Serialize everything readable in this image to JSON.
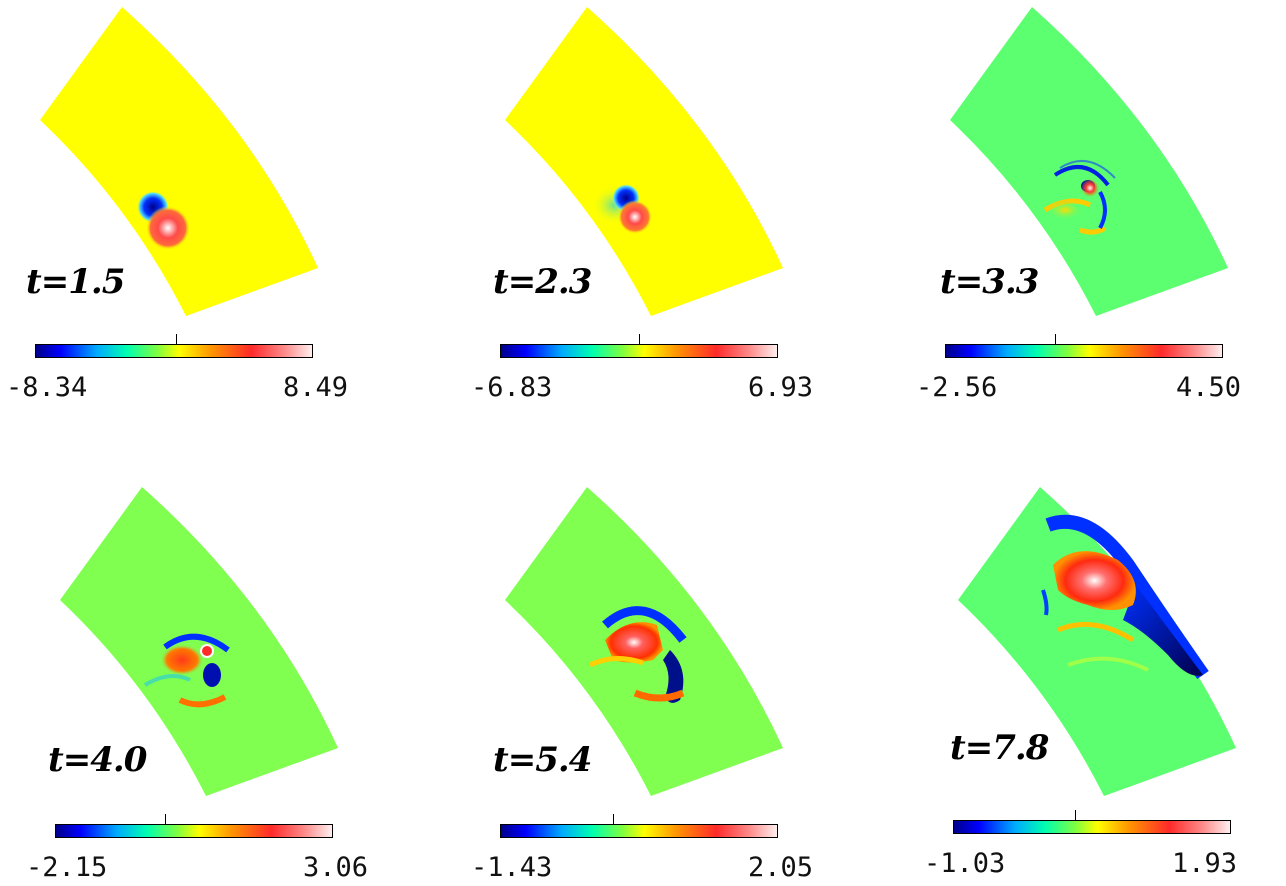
{
  "panels": [
    {
      "label": "t=1.5",
      "min": "-8.34",
      "max": "8.49"
    },
    {
      "label": "t=2.3",
      "min": "-6.83",
      "max": "6.93"
    },
    {
      "label": "t=3.3",
      "min": "-2.56",
      "max": "4.50"
    },
    {
      "label": "t=4.0",
      "min": "-2.15",
      "max": "3.06"
    },
    {
      "label": "t=5.4",
      "min": "-1.43",
      "max": "2.05"
    },
    {
      "label": "t=7.8",
      "min": "-1.03",
      "max": "1.93"
    }
  ],
  "colors": {
    "background_positive_range": "#ffff00",
    "background_neutral": "#80ff60",
    "background_green": "#5cff70",
    "cold": "#00008b",
    "hot": "#ff3030"
  }
}
